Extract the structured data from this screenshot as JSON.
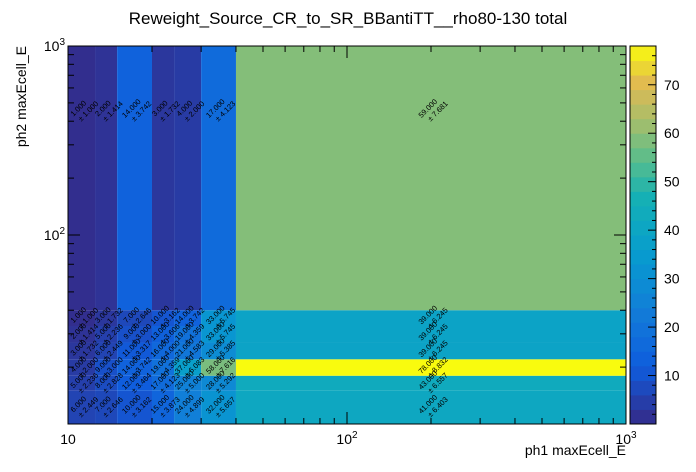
{
  "chart_data": {
    "type": "heatmap",
    "title": "Reweight_Source_CR_to_SR_BBantiTT__rho80-130 total",
    "xlabel": "ph1 maxEcell_E",
    "ylabel": "ph2 maxEcell_E",
    "x_scale": "log",
    "y_scale": "log",
    "xlim": [
      10,
      1000
    ],
    "ylim": [
      10,
      1000
    ],
    "x_ticks": [
      {
        "value": 10,
        "base": "10",
        "exp": ""
      },
      {
        "value": 100,
        "base": "10",
        "exp": "2"
      },
      {
        "value": 1000,
        "base": "10",
        "exp": "3"
      }
    ],
    "y_ticks": [
      {
        "value": 100,
        "base": "10",
        "exp": "2"
      },
      {
        "value": 1000,
        "base": "10",
        "exp": "3"
      }
    ],
    "z_range": [
      0,
      78
    ],
    "z_ticks": [
      "10",
      "20",
      "30",
      "40",
      "50",
      "60",
      "70"
    ],
    "x_edges": [
      10,
      12.5,
      15,
      20,
      24,
      30,
      40,
      1000
    ],
    "y_edges": [
      10,
      15,
      18,
      22,
      27,
      33,
      40,
      1000
    ],
    "cells": [
      {
        "ix": 0,
        "iy": 0,
        "value": 6,
        "label": "6.000",
        "error": "± 2.449"
      },
      {
        "ix": 1,
        "iy": 0,
        "value": 7,
        "label": "7.000",
        "error": "± 2.646"
      },
      {
        "ix": 2,
        "iy": 0,
        "value": 10,
        "label": "10.000",
        "error": "± 3.162"
      },
      {
        "ix": 3,
        "iy": 0,
        "value": 15,
        "label": "15.000",
        "error": "± 3.873"
      },
      {
        "ix": 4,
        "iy": 0,
        "value": 24,
        "label": "24.000",
        "error": "± 4.899"
      },
      {
        "ix": 5,
        "iy": 0,
        "value": 32,
        "label": "32.000",
        "error": "± 5.657"
      },
      {
        "ix": 6,
        "iy": 0,
        "value": 41,
        "label": "41.000",
        "error": "± 6.403"
      },
      {
        "ix": 0,
        "iy": 1,
        "value": 5,
        "label": "5.000",
        "error": "± 2.236"
      },
      {
        "ix": 1,
        "iy": 1,
        "value": 8,
        "label": "8.000",
        "error": "± 2.828"
      },
      {
        "ix": 2,
        "iy": 1,
        "value": 12,
        "label": "12.000",
        "error": "± 3.464"
      },
      {
        "ix": 3,
        "iy": 1,
        "value": 17,
        "label": "17.000",
        "error": "± 4.123"
      },
      {
        "ix": 4,
        "iy": 1,
        "value": 25,
        "label": "25.000",
        "error": "± 5.000"
      },
      {
        "ix": 5,
        "iy": 1,
        "value": 28,
        "label": "28.000",
        "error": "± 5.292"
      },
      {
        "ix": 6,
        "iy": 1,
        "value": 43,
        "label": "43.000",
        "error": "± 6.557"
      },
      {
        "ix": 0,
        "iy": 2,
        "value": 4,
        "label": "4.000",
        "error": "± 2.000"
      },
      {
        "ix": 1,
        "iy": 2,
        "value": 9,
        "label": "9.000",
        "error": "± 3.000"
      },
      {
        "ix": 2,
        "iy": 2,
        "value": 14,
        "label": "14.000",
        "error": "± 3.742"
      },
      {
        "ix": 3,
        "iy": 2,
        "value": 19,
        "label": "19.000",
        "error": "± 4.359"
      },
      {
        "ix": 4,
        "iy": 2,
        "value": 37,
        "label": "37.000",
        "error": "± 6.083"
      },
      {
        "ix": 5,
        "iy": 2,
        "value": 58,
        "label": "58.000",
        "error": "± 7.616"
      },
      {
        "ix": 6,
        "iy": 2,
        "value": 78,
        "label": "78.000",
        "error": "± 8.832"
      },
      {
        "ix": 0,
        "iy": 3,
        "value": 3,
        "label": "3.000",
        "error": "± 1.732"
      },
      {
        "ix": 1,
        "iy": 3,
        "value": 6,
        "label": "6.000",
        "error": "± 2.449"
      },
      {
        "ix": 2,
        "iy": 3,
        "value": 11,
        "label": "11.000",
        "error": "± 3.317"
      },
      {
        "ix": 3,
        "iy": 3,
        "value": 16,
        "label": "16.000",
        "error": "± 4.000"
      },
      {
        "ix": 4,
        "iy": 3,
        "value": 21,
        "label": "21.000",
        "error": "± 4.583"
      },
      {
        "ix": 5,
        "iy": 3,
        "value": 29,
        "label": "29.000",
        "error": "± 5.385"
      },
      {
        "ix": 6,
        "iy": 3,
        "value": 39,
        "label": "39.000",
        "error": "± 6.245"
      },
      {
        "ix": 0,
        "iy": 4,
        "value": 2,
        "label": "2.000",
        "error": "± 1.414"
      },
      {
        "ix": 1,
        "iy": 4,
        "value": 5,
        "label": "5.000",
        "error": "± 2.236"
      },
      {
        "ix": 2,
        "iy": 4,
        "value": 9,
        "label": "9.000",
        "error": "± 3.000"
      },
      {
        "ix": 3,
        "iy": 4,
        "value": 13,
        "label": "13.000",
        "error": "± 3.606"
      },
      {
        "ix": 4,
        "iy": 4,
        "value": 19,
        "label": "19.000",
        "error": "± 4.359"
      },
      {
        "ix": 5,
        "iy": 4,
        "value": 33,
        "label": "33.000",
        "error": "± 5.745"
      },
      {
        "ix": 6,
        "iy": 4,
        "value": 39,
        "label": "39.000",
        "error": "± 6.245"
      },
      {
        "ix": 0,
        "iy": 5,
        "value": 1,
        "label": "1.000",
        "error": "± 1.000"
      },
      {
        "ix": 1,
        "iy": 5,
        "value": 3,
        "label": "3.000",
        "error": "± 1.732"
      },
      {
        "ix": 2,
        "iy": 5,
        "value": 7,
        "label": "7.000",
        "error": "± 2.646"
      },
      {
        "ix": 3,
        "iy": 5,
        "value": 10,
        "label": "10.000",
        "error": "± 3.162"
      },
      {
        "ix": 4,
        "iy": 5,
        "value": 14,
        "label": "14.000",
        "error": "± 3.742"
      },
      {
        "ix": 5,
        "iy": 5,
        "value": 33,
        "label": "33.000",
        "error": "± 5.745"
      },
      {
        "ix": 6,
        "iy": 5,
        "value": 39,
        "label": "39.000",
        "error": "± 6.245"
      },
      {
        "ix": 0,
        "iy": 6,
        "value": 1,
        "label": "1.000",
        "error": "± 1.000"
      },
      {
        "ix": 1,
        "iy": 6,
        "value": 2,
        "label": "2.000",
        "error": "± 1.414"
      },
      {
        "ix": 2,
        "iy": 6,
        "value": 14,
        "label": "14.000",
        "error": "± 3.742"
      },
      {
        "ix": 3,
        "iy": 6,
        "value": 3,
        "label": "3.000",
        "error": "± 1.732"
      },
      {
        "ix": 4,
        "iy": 6,
        "value": 4,
        "label": "4.000",
        "error": "± 2.000"
      },
      {
        "ix": 5,
        "iy": 6,
        "value": 17,
        "label": "17.000",
        "error": "± 4.123"
      },
      {
        "ix": 6,
        "iy": 6,
        "value": 59,
        "label": "59.000",
        "error": "± 7.681"
      }
    ]
  }
}
